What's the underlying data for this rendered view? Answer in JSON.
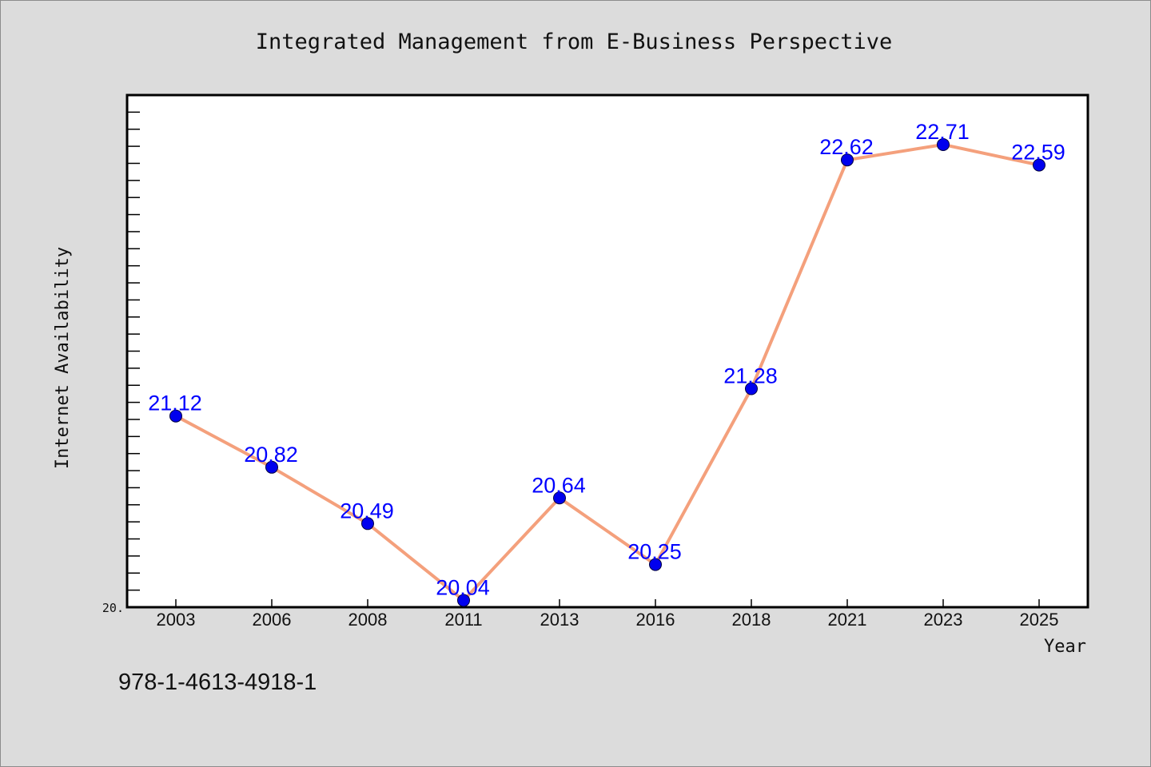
{
  "chart_data": {
    "type": "line",
    "title": "Integrated Management from E-Business Perspective",
    "xlabel": "Year",
    "ylabel": "Internet Availability",
    "categories": [
      "2003",
      "2006",
      "2008",
      "2011",
      "2013",
      "2016",
      "2018",
      "2021",
      "2023",
      "2025"
    ],
    "series": [
      {
        "values": [
          21.12,
          20.82,
          20.49,
          20.04,
          20.64,
          20.25,
          21.28,
          22.62,
          22.71,
          22.59
        ],
        "labels": [
          "21.12",
          "20.82",
          "20.49",
          "20.04",
          "20.64",
          "20.25",
          "21.28",
          "22.62",
          "22.71",
          "22.59"
        ],
        "line_color": "#f4a07c",
        "marker_color": "#0000ee",
        "label_color": "#0000ff"
      }
    ],
    "ylim": [
      20,
      23
    ],
    "y_tick_labels": [
      "20."
    ],
    "grid": false,
    "legend": "none"
  },
  "footer": {
    "isbn": "978-1-4613-4918-1"
  }
}
